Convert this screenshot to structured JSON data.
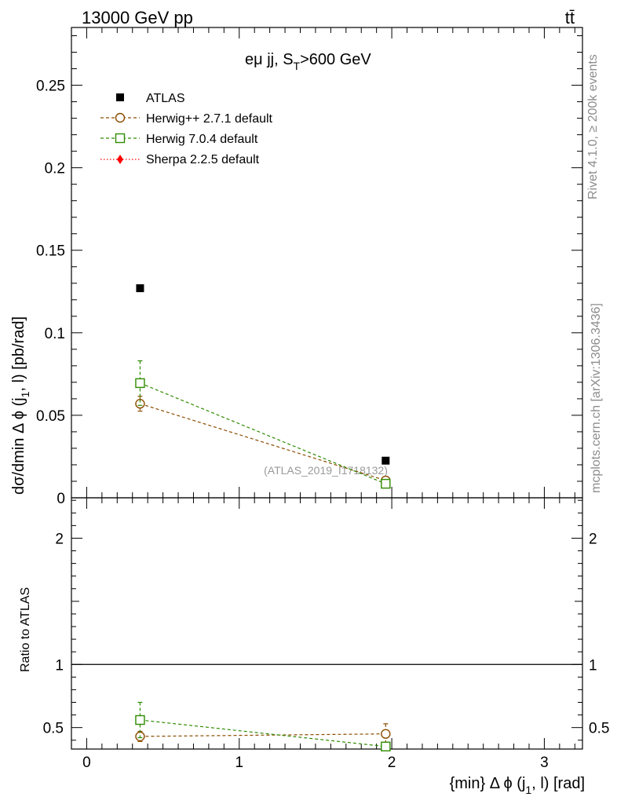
{
  "header": {
    "left": "13000 GeV pp",
    "right": "tt̄"
  },
  "side_labels": {
    "top": "Rivet 4.1.0, ≥ 200k events",
    "bottom": "mcplots.cern.ch [arXiv:1306.3436]"
  },
  "chart_data": [
    {
      "type": "scatter",
      "panel": "main",
      "title": "eμ jj, S_T>600 GeV",
      "title_main": "eμ jj, S",
      "title_sub": "T",
      "title_tail": ">600 GeV",
      "ylabel": "dσ/dmin Δ ϕ (j_1, l) [pb/rad]",
      "ylabel_main": "dσ/dmin Δ ϕ (j",
      "ylabel_sub": "1",
      "ylabel_tail": ", l) [pb/rad]",
      "xlim": [
        -0.1,
        3.25
      ],
      "ylim": [
        0,
        0.285
      ],
      "yticks": [
        0,
        0.05,
        0.1,
        0.15,
        0.2,
        0.25
      ],
      "ytick_labels": [
        "0",
        "0.05",
        "0.1",
        "0.15",
        "0.2",
        "0.25"
      ],
      "watermark": "(ATLAS_2019_I1718132)",
      "legend_position": "top-left",
      "series": [
        {
          "name": "ATLAS",
          "key": "atlas",
          "color": "#000000",
          "marker": "square-filled",
          "line": "none",
          "x": [
            0.35,
            1.96
          ],
          "y": [
            0.127,
            0.0225
          ],
          "err": [
            0,
            0
          ]
        },
        {
          "name": "Herwig++ 2.7.1 default",
          "key": "herwigpp",
          "color": "#8b4c00",
          "marker": "circle-open",
          "line": "dashed",
          "x": [
            0.35,
            1.96
          ],
          "y": [
            0.057,
            0.0105
          ],
          "err": [
            0.0045,
            0.0015
          ]
        },
        {
          "name": "Herwig 7.0.4 default",
          "key": "herwig7",
          "color": "#2e8b00",
          "marker": "square-open",
          "line": "dashed",
          "x": [
            0.35,
            1.96
          ],
          "y": [
            0.0695,
            0.0085
          ],
          "err": [
            0.0135,
            0.001
          ]
        },
        {
          "name": "Sherpa 2.2.5 default",
          "key": "sherpa",
          "color": "#ff0000",
          "marker": "diamond-filled",
          "line": "dotted",
          "x": [],
          "y": [],
          "err": []
        }
      ]
    },
    {
      "type": "scatter",
      "panel": "ratio",
      "ylabel": "Ratio to ATLAS",
      "xlabel": "{min} Δ ϕ (j_1, l) [rad]",
      "xlabel_main": "{min} Δ ϕ (j",
      "xlabel_sub": "1",
      "xlabel_tail": ", l) [rad]",
      "xlim": [
        -0.1,
        3.25
      ],
      "ylim": [
        0.33,
        2.32
      ],
      "xticks": [
        0,
        1,
        2,
        3
      ],
      "xtick_labels": [
        "0",
        "1",
        "2",
        "3"
      ],
      "yticks": [
        0.5,
        1,
        2
      ],
      "ytick_labels": [
        "0.5",
        "1",
        "2"
      ],
      "reference_line": 1,
      "series": [
        {
          "name": "Herwig++ 2.7.1 default",
          "key": "herwigpp",
          "color": "#8b4c00",
          "marker": "circle-open",
          "line": "dashed",
          "x": [
            0.35,
            1.96
          ],
          "y": [
            0.43,
            0.45
          ],
          "err": [
            0.04,
            0.08
          ]
        },
        {
          "name": "Herwig 7.0.4 default",
          "key": "herwig7",
          "color": "#2e8b00",
          "marker": "square-open",
          "line": "dashed",
          "x": [
            0.35,
            1.96
          ],
          "y": [
            0.56,
            0.35
          ],
          "err": [
            0.14,
            0.03
          ]
        }
      ]
    }
  ]
}
